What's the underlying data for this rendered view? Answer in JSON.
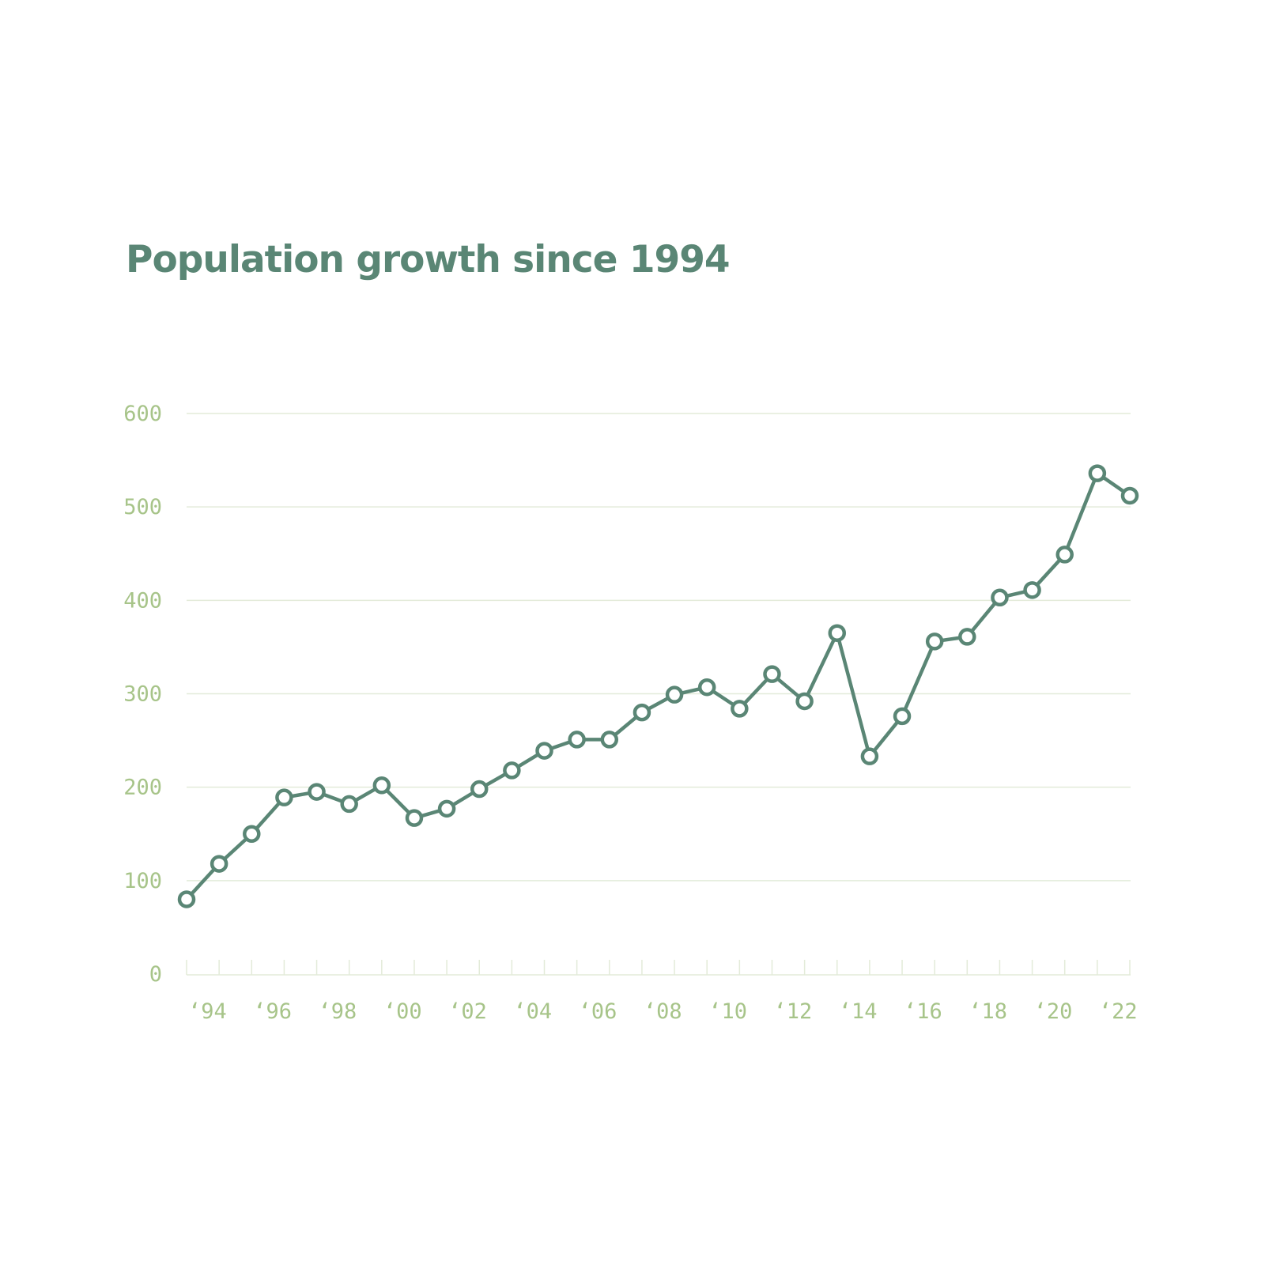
{
  "colors": {
    "line": "#5a8675",
    "title": "#5a8675",
    "axis_text": "#a7c489",
    "grid": "#e3ebd9",
    "marker_fill": "#ffffff"
  },
  "chart_data": {
    "type": "line",
    "title": "Population growth since 1994",
    "xlabel": "",
    "ylabel": "",
    "ylim": [
      0,
      600
    ],
    "xlim": [
      1994,
      2023
    ],
    "yticks": [
      0,
      100,
      200,
      300,
      400,
      500,
      600
    ],
    "yticklabels": [
      "0",
      "100",
      "200",
      "300",
      "400",
      "500",
      "600"
    ],
    "xticks": [
      1994,
      1996,
      1998,
      2000,
      2002,
      2004,
      2006,
      2008,
      2010,
      2012,
      2014,
      2016,
      2018,
      2020,
      2022
    ],
    "xticklabels": [
      "‘94",
      "‘96",
      "‘98",
      "‘00",
      "‘02",
      "‘04",
      "‘06",
      "‘08",
      "‘10",
      "‘12",
      "‘14",
      "‘16",
      "‘18",
      "‘20",
      "‘22"
    ],
    "grid": true,
    "legend": "none",
    "x": [
      1994,
      1995,
      1996,
      1997,
      1998,
      1999,
      2000,
      2001,
      2002,
      2003,
      2004,
      2005,
      2006,
      2007,
      2008,
      2009,
      2010,
      2011,
      2012,
      2013,
      2014,
      2015,
      2016,
      2017,
      2018,
      2019,
      2020,
      2021,
      2022,
      2023
    ],
    "values": [
      80,
      118,
      150,
      189,
      195,
      182,
      202,
      167,
      177,
      198,
      218,
      239,
      251,
      251,
      280,
      299,
      307,
      284,
      321,
      292,
      365,
      233,
      276,
      356,
      361,
      403,
      411,
      449,
      536,
      512
    ]
  }
}
